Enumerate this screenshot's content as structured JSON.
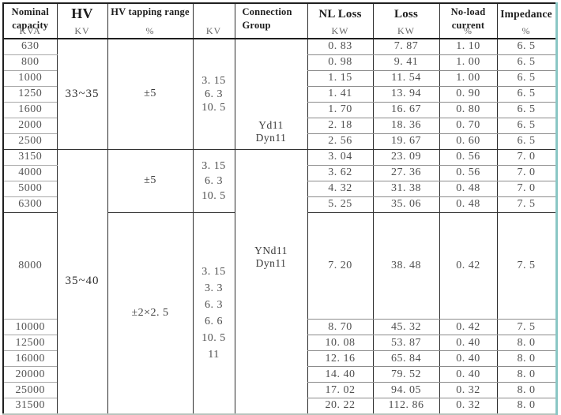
{
  "table_title": "transformer-specification-table",
  "header": {
    "columns": [
      {
        "id": "capacity",
        "lines": [
          "Nominal",
          "capacity"
        ],
        "unit": "KVA",
        "unit_style": "overlap"
      },
      {
        "id": "hv",
        "lines": [
          "HV"
        ],
        "unit": "KV",
        "title_style": "big",
        "unit_style": "bottom"
      },
      {
        "id": "tapping",
        "lines": [
          "HV tapping range"
        ],
        "unit": "%",
        "unit_style": "bottom"
      },
      {
        "id": "lv",
        "lines": [],
        "unit": "KV",
        "unit_style": "bottom"
      },
      {
        "id": "connection",
        "lines": [
          "Connection",
          "Group"
        ],
        "unit": "",
        "align": "left"
      },
      {
        "id": "nl_loss",
        "lines": [
          "NL Loss"
        ],
        "unit": "KW",
        "title_style": "mid",
        "unit_style": "bottom"
      },
      {
        "id": "loss",
        "lines": [
          "Loss"
        ],
        "unit": "KW",
        "title_style": "mid",
        "unit_style": "bottom"
      },
      {
        "id": "no_load",
        "lines": [
          "No-load",
          "current"
        ],
        "unit": "%",
        "unit_style": "overlap"
      },
      {
        "id": "impedance",
        "lines": [
          "Impedance"
        ],
        "unit": "%",
        "title_style": "imp",
        "unit_style": "bottom"
      }
    ]
  },
  "rows": [
    {
      "capacity": "630",
      "nl_loss": "0. 83",
      "loss": "7. 87",
      "no_load": "1. 10",
      "impedance": "6. 5"
    },
    {
      "capacity": "800",
      "nl_loss": "0. 98",
      "loss": "9. 41",
      "no_load": "1. 00",
      "impedance": "6. 5"
    },
    {
      "capacity": "1000",
      "nl_loss": "1. 15",
      "loss": "11. 54",
      "no_load": "1. 00",
      "impedance": "6. 5"
    },
    {
      "capacity": "1250",
      "nl_loss": "1. 41",
      "loss": "13. 94",
      "no_load": "0. 90",
      "impedance": "6. 5"
    },
    {
      "capacity": "1600",
      "nl_loss": "1. 70",
      "loss": "16. 67",
      "no_load": "0. 80",
      "impedance": "6. 5"
    },
    {
      "capacity": "2000",
      "nl_loss": "2. 18",
      "loss": "18. 36",
      "no_load": "0. 70",
      "impedance": "6. 5"
    },
    {
      "capacity": "2500",
      "nl_loss": "2. 56",
      "loss": "19. 67",
      "no_load": "0. 60",
      "impedance": "6. 5"
    },
    {
      "capacity": "3150",
      "nl_loss": "3. 04",
      "loss": "23. 09",
      "no_load": "0. 56",
      "impedance": "7. 0"
    },
    {
      "capacity": "4000",
      "nl_loss": "3. 62",
      "loss": "27. 36",
      "no_load": "0. 56",
      "impedance": "7. 0"
    },
    {
      "capacity": "5000",
      "nl_loss": "4. 32",
      "loss": "31. 38",
      "no_load": "0. 48",
      "impedance": "7. 0"
    },
    {
      "capacity": "6300",
      "nl_loss": "5. 25",
      "loss": "35. 06",
      "no_load": "0. 48",
      "impedance": "7. 5"
    },
    {
      "capacity": "8000",
      "nl_loss": "7. 20",
      "loss": "38. 48",
      "no_load": "0. 42",
      "impedance": "7. 5"
    },
    {
      "capacity": "10000",
      "nl_loss": "8. 70",
      "loss": "45. 32",
      "no_load": "0. 42",
      "impedance": "7. 5"
    },
    {
      "capacity": "12500",
      "nl_loss": "10. 08",
      "loss": "53. 87",
      "no_load": "0. 40",
      "impedance": "8. 0"
    },
    {
      "capacity": "16000",
      "nl_loss": "12. 16",
      "loss": "65. 84",
      "no_load": "0. 40",
      "impedance": "8. 0"
    },
    {
      "capacity": "20000",
      "nl_loss": "14. 40",
      "loss": "79. 52",
      "no_load": "0. 40",
      "impedance": "8. 0"
    },
    {
      "capacity": "25000",
      "nl_loss": "17. 02",
      "loss": "94. 05",
      "no_load": "0. 32",
      "impedance": "8. 0"
    },
    {
      "capacity": "31500",
      "nl_loss": "20. 22",
      "loss": "112. 86",
      "no_load": "0. 32",
      "impedance": "8. 0"
    }
  ],
  "merged": {
    "hv": [
      {
        "text": "33~35",
        "start": 0,
        "span": 7
      },
      {
        "text": "35~40",
        "start": 7,
        "span": 11
      }
    ],
    "tapping": [
      {
        "text": "±5",
        "start": 0,
        "span": 7
      },
      {
        "text": "±5",
        "start": 7,
        "span": 4
      },
      {
        "text": "±2×2. 5",
        "start": 11,
        "span": 7
      }
    ],
    "lv": [
      {
        "lines": [
          "3. 15",
          "6. 3",
          "10. 5"
        ],
        "start": 0,
        "span": 7,
        "style": "lv-g1"
      },
      {
        "lines": [
          "3. 15",
          "6. 3",
          "10. 5"
        ],
        "start": 7,
        "span": 4,
        "style": "lv-g2"
      },
      {
        "lines": [
          "3. 15",
          "3. 3",
          "6. 3",
          "6. 6",
          "10. 5",
          "11"
        ],
        "start": 11,
        "span": 7,
        "style": "lv-g3"
      }
    ],
    "connection": [
      {
        "lines": [
          "Yd11",
          "Dyn11"
        ],
        "start": 0,
        "span": 7,
        "style": "c1"
      },
      {
        "lines": [
          "YNd11",
          "Dyn11"
        ],
        "start": 7,
        "span": 11,
        "style": "c2"
      }
    ]
  },
  "group_end_rows": [
    6,
    10
  ],
  "colors": {
    "grid_dark": "#2e2e2e",
    "grid_light": "#8c8c8c",
    "right_edge_accent": "#8ac7c5",
    "bottom_edge": "#b9c4bd",
    "header_text": "#1d1d1d",
    "body_text": "#4f4f4f"
  }
}
